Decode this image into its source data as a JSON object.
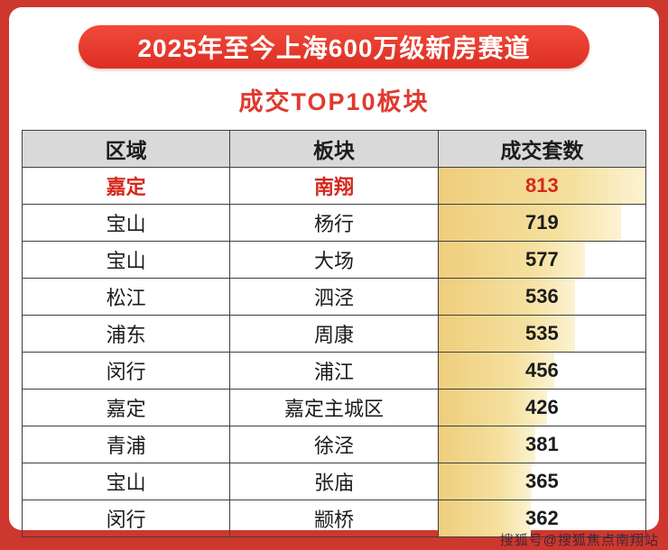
{
  "banner": {
    "title": "2025年至今上海600万级新房赛道"
  },
  "subtitle": "成交TOP10板块",
  "chart_data": {
    "type": "table",
    "title": "2025年至今上海600万级新房赛道 成交TOP10板块",
    "columns": [
      "区域",
      "板块",
      "成交套数"
    ],
    "rows": [
      [
        "嘉定",
        "南翔",
        813
      ],
      [
        "宝山",
        "杨行",
        719
      ],
      [
        "宝山",
        "大场",
        577
      ],
      [
        "松江",
        "泗泾",
        536
      ],
      [
        "浦东",
        "周康",
        535
      ],
      [
        "闵行",
        "浦江",
        456
      ],
      [
        "嘉定",
        "嘉定主城区",
        426
      ],
      [
        "青浦",
        "徐泾",
        381
      ],
      [
        "宝山",
        "张庙",
        365
      ],
      [
        "闵行",
        "颛桥",
        362
      ]
    ],
    "highlight_row": 0,
    "value_axis_max": 813,
    "bar_style": "proportional horizontal data bars in value column"
  },
  "watermark": "搜狐号@搜狐焦点南翔站",
  "colors": {
    "page_background": "#cd372e",
    "banner_red": "#e8392e",
    "subtitle_red": "#e0392e",
    "header_bg": "#d9d9d9",
    "highlight_text": "#d6281c",
    "bar_gold": "#efce7c",
    "table_border": "#3f3f3f"
  }
}
